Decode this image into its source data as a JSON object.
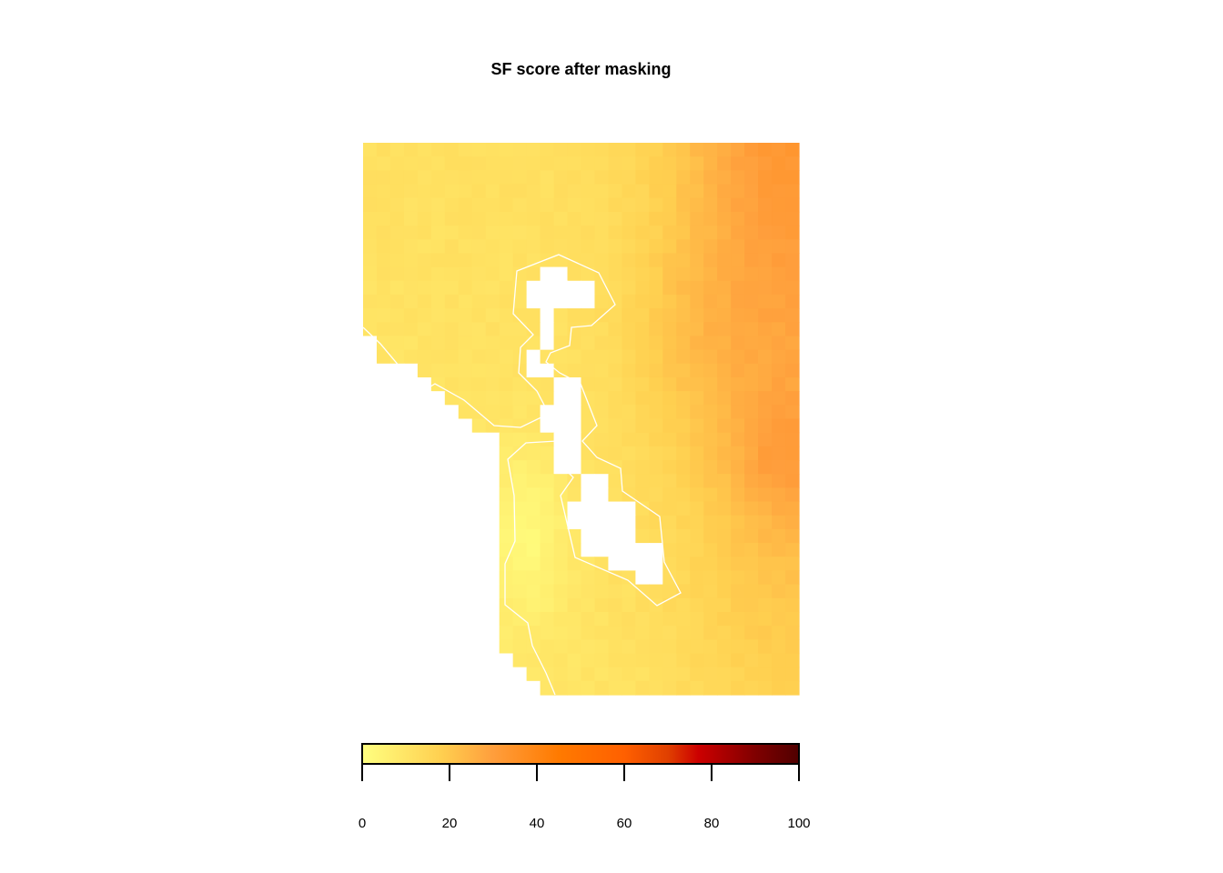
{
  "chart_data": {
    "type": "heatmap",
    "title": "SF score after masking",
    "xlabel": "",
    "ylabel": "",
    "colorbar": {
      "min": 0,
      "max": 100,
      "ticks": [
        0,
        20,
        40,
        60,
        80,
        100
      ],
      "tick_labels": [
        "0",
        "20",
        "40",
        "60",
        "80",
        "100"
      ],
      "placement": "bottom",
      "stops": [
        {
          "value": 0,
          "color": "#ffff80"
        },
        {
          "value": 18,
          "color": "#ffd050"
        },
        {
          "value": 30,
          "color": "#ff9e3c"
        },
        {
          "value": 45,
          "color": "#ff7a00"
        },
        {
          "value": 60,
          "color": "#ff6000"
        },
        {
          "value": 70,
          "color": "#e04000"
        },
        {
          "value": 77,
          "color": "#cc0000"
        },
        {
          "value": 90,
          "color": "#800000"
        },
        {
          "value": 100,
          "color": "#500000"
        }
      ]
    },
    "grid": {
      "cols": 32,
      "rows": 40,
      "mask_color": "#ffffff",
      "approx_values": [
        {
          "region": "north-west",
          "value": 12
        },
        {
          "region": "north-east",
          "value": 32
        },
        {
          "region": "east-center",
          "value": 30
        },
        {
          "region": "south-west",
          "value": 3
        },
        {
          "region": "south-east",
          "value": 9
        }
      ]
    },
    "outline_color": "#ffffff",
    "grid_lines": false
  }
}
